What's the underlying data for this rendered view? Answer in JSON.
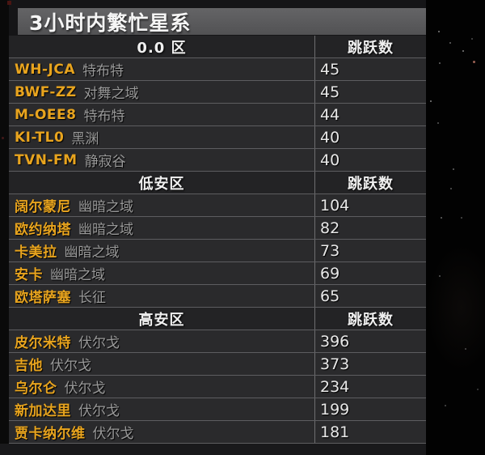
{
  "title": "3小时内繁忙星系",
  "jump_header": "跳跃数",
  "sections": [
    {
      "label": "0.0 区",
      "rows": [
        {
          "system": "WH-JCA",
          "region": "特布特",
          "jumps": "45"
        },
        {
          "system": "BWF-ZZ",
          "region": "对舞之域",
          "jumps": "45"
        },
        {
          "system": "M-OEE8",
          "region": "特布特",
          "jumps": "44"
        },
        {
          "system": "KI-TL0",
          "region": "黑渊",
          "jumps": "40"
        },
        {
          "system": "TVN-FM",
          "region": "静寂谷",
          "jumps": "40"
        }
      ]
    },
    {
      "label": "低安区",
      "rows": [
        {
          "system": "阔尔蒙尼",
          "region": "幽暗之域",
          "jumps": "104"
        },
        {
          "system": "欧约纳塔",
          "region": "幽暗之域",
          "jumps": "82"
        },
        {
          "system": "卡美拉",
          "region": "幽暗之域",
          "jumps": "73"
        },
        {
          "system": "安卡",
          "region": "幽暗之域",
          "jumps": "69"
        },
        {
          "system": "欧塔萨塞",
          "region": "长征",
          "jumps": "65"
        }
      ]
    },
    {
      "label": "高安区",
      "rows": [
        {
          "system": "皮尔米特",
          "region": "伏尔戈",
          "jumps": "396"
        },
        {
          "system": "吉他",
          "region": "伏尔戈",
          "jumps": "373"
        },
        {
          "system": "乌尔仑",
          "region": "伏尔戈",
          "jumps": "234"
        },
        {
          "system": "新加达里",
          "region": "伏尔戈",
          "jumps": "199"
        },
        {
          "system": "贾卡纳尔维",
          "region": "伏尔戈",
          "jumps": "181"
        }
      ]
    }
  ],
  "colors": {
    "system_name": "#e8a41e",
    "region_name": "#999999",
    "jump_count": "#e8e8e8",
    "header_text": "#f0f0f0",
    "title_bar": "#59595b",
    "row_bg": "#2a2a2c",
    "divider": "#5d5d60"
  }
}
